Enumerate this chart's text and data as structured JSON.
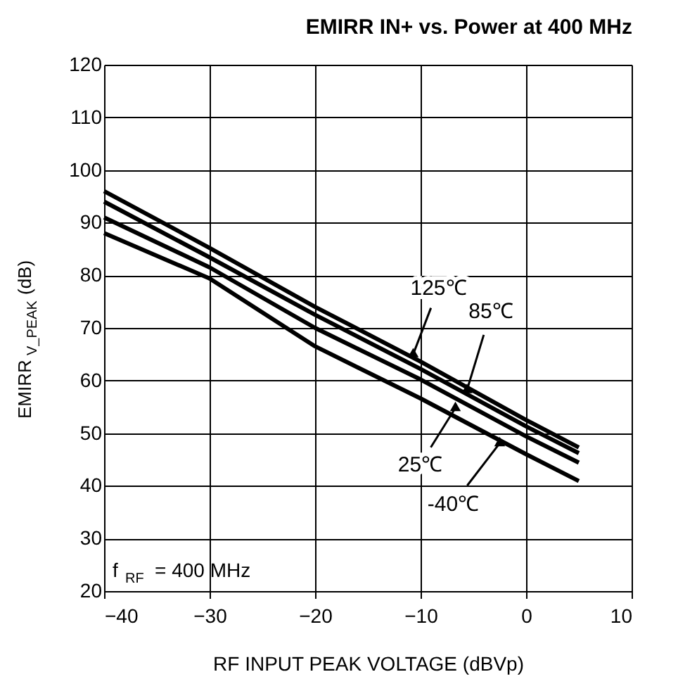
{
  "chart_data": {
    "type": "line",
    "title": "EMIRR IN+ vs. Power at 400 MHz",
    "xlabel": "RF INPUT PEAK VOLTAGE (dBVp)",
    "ylabel": "EMIRR$_{V_PEAK}$ (dB)",
    "xlim": [
      -40,
      10
    ],
    "xticks": [
      -40,
      -30,
      -20,
      -10,
      0,
      10
    ],
    "ylim": [
      20,
      120
    ],
    "yticks": [
      20,
      30,
      40,
      50,
      60,
      70,
      80,
      90,
      100,
      110,
      120
    ],
    "grid": true,
    "marker": "none",
    "line_style": "solid",
    "series": [
      {
        "color": "#000000",
        "x": [
          -40,
          -30,
          -20,
          -10,
          0,
          5
        ],
        "values": [
          96,
          85.2,
          74,
          63.6,
          52.5,
          47.3
        ]
      },
      {
        "color": "#000000",
        "x": [
          -40,
          -30,
          -20,
          -10,
          0,
          5
        ],
        "values": [
          94,
          83.4,
          72.5,
          62.2,
          51.3,
          46.2
        ]
      },
      {
        "color": "#000000",
        "x": [
          -40,
          -30,
          -20,
          -10,
          0,
          5
        ],
        "values": [
          91,
          81.5,
          70,
          60.2,
          49.4,
          44.4
        ]
      },
      {
        "color": "#000000",
        "x": [
          -40,
          -30,
          -20,
          -10,
          0,
          5
        ],
        "values": [
          88,
          79.4,
          66.5,
          56.6,
          46,
          40.9
        ]
      }
    ],
    "annotations": [
      {
        "text": "125℃",
        "x": -10.7,
        "y": 65
      },
      {
        "text": "85℃",
        "x": -5.6,
        "y": 58.2
      },
      {
        "text": "25℃",
        "x": -6.7,
        "y": 54.8
      },
      {
        "text": "-40℃",
        "x": -2.5,
        "y": 48.1
      },
      "f$_{RF}$ = 400 MHz"
    ]
  }
}
